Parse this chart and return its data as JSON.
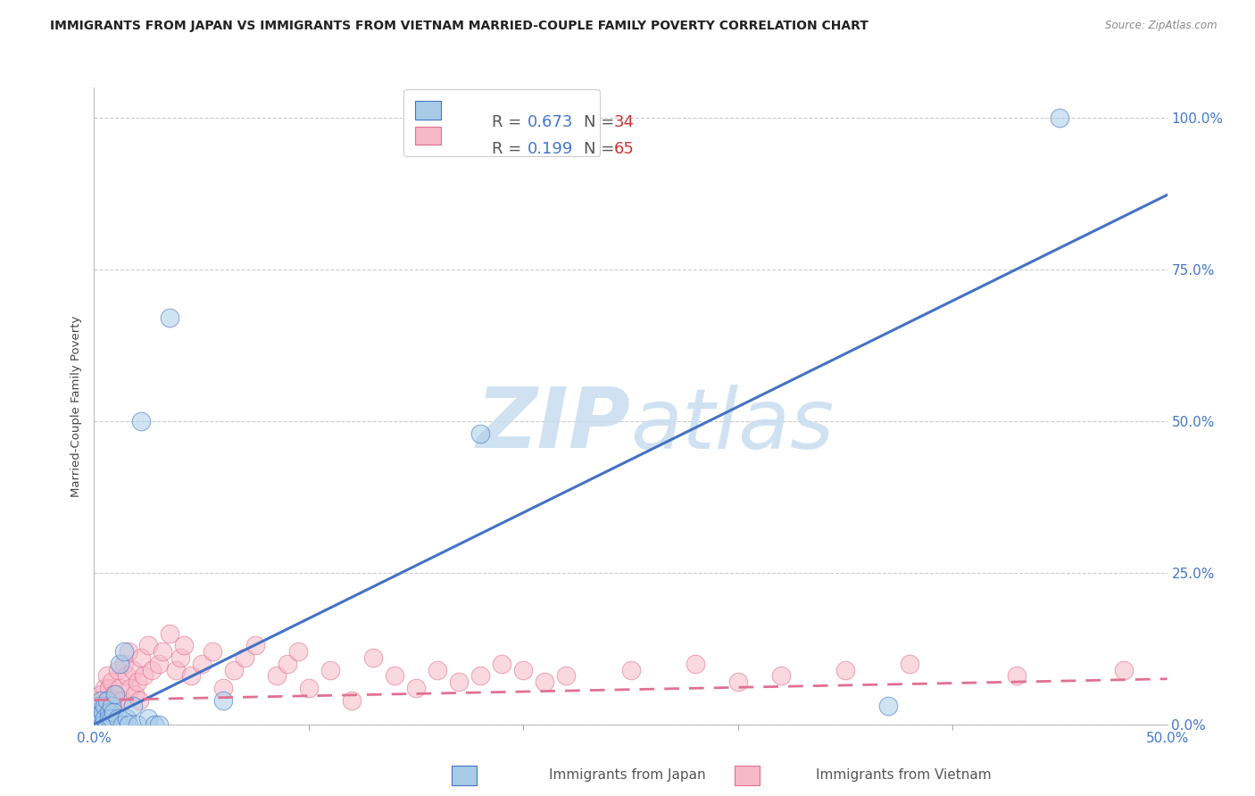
{
  "title": "IMMIGRANTS FROM JAPAN VS IMMIGRANTS FROM VIETNAM MARRIED-COUPLE FAMILY POVERTY CORRELATION CHART",
  "source": "Source: ZipAtlas.com",
  "ylabel": "Married-Couple Family Poverty",
  "right_yticklabels": [
    "0.0%",
    "25.0%",
    "50.0%",
    "75.0%",
    "100.0%"
  ],
  "japan_color": "#a8cce8",
  "vietnam_color": "#f7b8c8",
  "japan_line_color": "#4472c4",
  "vietnam_line_color": "#e07090",
  "watermark_zip": "ZIP",
  "watermark_atlas": "atlas",
  "background_color": "#ffffff",
  "grid_color": "#cccccc",
  "japan_x": [
    0.001,
    0.002,
    0.002,
    0.003,
    0.003,
    0.004,
    0.004,
    0.005,
    0.005,
    0.006,
    0.006,
    0.007,
    0.007,
    0.008,
    0.008,
    0.009,
    0.01,
    0.011,
    0.012,
    0.013,
    0.014,
    0.015,
    0.016,
    0.018,
    0.02,
    0.022,
    0.025,
    0.028,
    0.03,
    0.035,
    0.06,
    0.18,
    0.37,
    0.45
  ],
  "japan_y": [
    0.01,
    0.02,
    0.03,
    0.01,
    0.04,
    0.02,
    0.0,
    0.03,
    0.01,
    0.0,
    0.04,
    0.02,
    0.01,
    0.03,
    0.01,
    0.02,
    0.05,
    0.01,
    0.1,
    0.0,
    0.12,
    0.01,
    0.0,
    0.03,
    0.0,
    0.5,
    0.01,
    0.0,
    0.0,
    0.67,
    0.04,
    0.48,
    0.03,
    1.0
  ],
  "vietnam_x": [
    0.001,
    0.002,
    0.003,
    0.004,
    0.005,
    0.006,
    0.006,
    0.007,
    0.007,
    0.008,
    0.008,
    0.009,
    0.01,
    0.011,
    0.012,
    0.013,
    0.014,
    0.015,
    0.016,
    0.017,
    0.018,
    0.019,
    0.02,
    0.021,
    0.022,
    0.023,
    0.025,
    0.027,
    0.03,
    0.032,
    0.035,
    0.038,
    0.04,
    0.042,
    0.045,
    0.05,
    0.055,
    0.06,
    0.065,
    0.07,
    0.075,
    0.085,
    0.09,
    0.095,
    0.1,
    0.11,
    0.12,
    0.13,
    0.14,
    0.15,
    0.16,
    0.17,
    0.18,
    0.19,
    0.2,
    0.21,
    0.22,
    0.25,
    0.28,
    0.3,
    0.32,
    0.35,
    0.38,
    0.43,
    0.48
  ],
  "vietnam_y": [
    0.04,
    0.03,
    0.05,
    0.02,
    0.06,
    0.03,
    0.08,
    0.04,
    0.06,
    0.03,
    0.07,
    0.05,
    0.04,
    0.09,
    0.06,
    0.04,
    0.1,
    0.08,
    0.12,
    0.06,
    0.09,
    0.05,
    0.07,
    0.04,
    0.11,
    0.08,
    0.13,
    0.09,
    0.1,
    0.12,
    0.15,
    0.09,
    0.11,
    0.13,
    0.08,
    0.1,
    0.12,
    0.06,
    0.09,
    0.11,
    0.13,
    0.08,
    0.1,
    0.12,
    0.06,
    0.09,
    0.04,
    0.11,
    0.08,
    0.06,
    0.09,
    0.07,
    0.08,
    0.1,
    0.09,
    0.07,
    0.08,
    0.09,
    0.1,
    0.07,
    0.08,
    0.09,
    0.1,
    0.08,
    0.09
  ],
  "xlim": [
    0.0,
    0.5
  ],
  "ylim": [
    0.0,
    1.05
  ],
  "japan_regression": [
    0.0,
    0.0,
    0.5,
    0.873
  ],
  "vietnam_regression": [
    0.0,
    0.04,
    0.5,
    0.075
  ]
}
